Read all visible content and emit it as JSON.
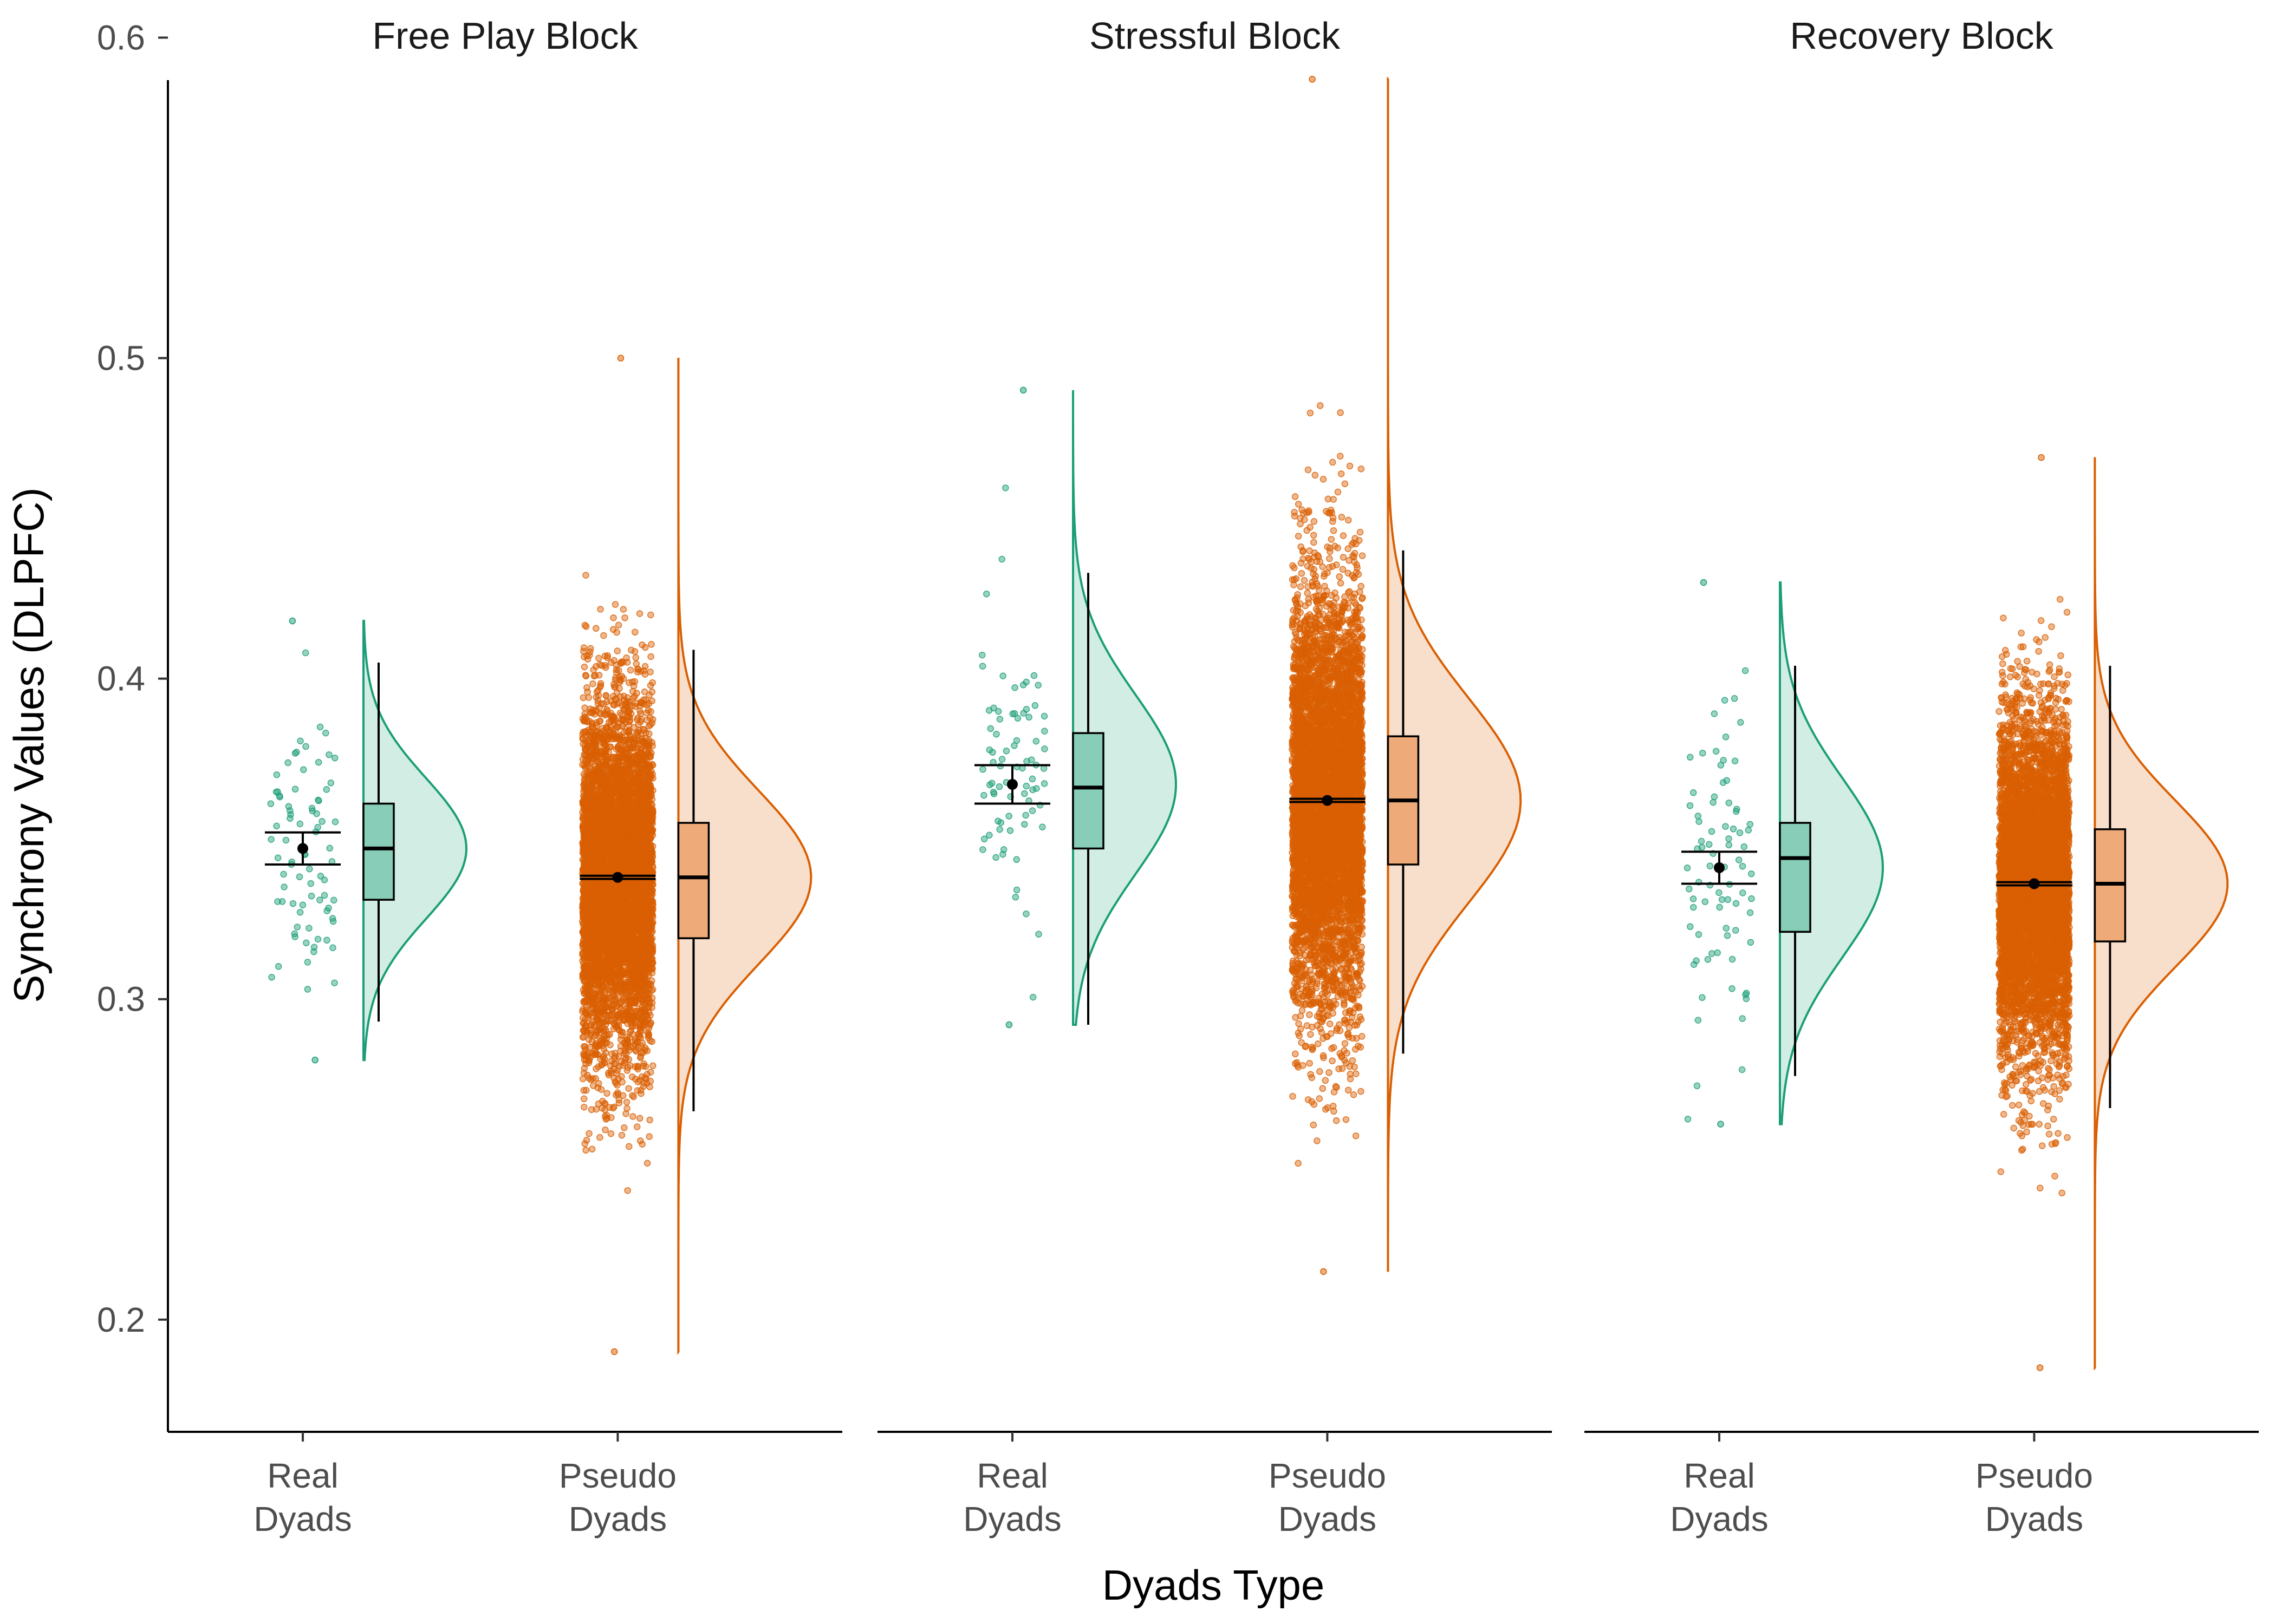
{
  "chart_data": {
    "type": "raincloud",
    "xlabel": "Dyads Type",
    "ylabel": "Synchrony Values (DLPFC)",
    "ylim": [
      0.165,
      0.607
    ],
    "yticks": [
      "0.2",
      "0.3",
      "0.4",
      "0.5",
      "0.6"
    ],
    "ytick_values": [
      0.2,
      0.3,
      0.4,
      0.5,
      0.6
    ],
    "categories": [
      {
        "line1": "Real",
        "line2": "Dyads"
      },
      {
        "line1": "Pseudo",
        "line2": "Dyads"
      }
    ],
    "colors": {
      "real_points": "#1b9e77",
      "real_box": "#87cdb8",
      "real_density_fill": "#d2ede4",
      "pseudo_points": "#d95f02",
      "pseudo_box": "#eeaa78",
      "pseudo_density_fill": "#f8dfcc"
    },
    "grid": false,
    "legend": "none",
    "panels": [
      {
        "title": "Free Play Block",
        "groups": [
          {
            "name": "Real Dyads",
            "n_points": 80,
            "mean": 0.347,
            "ci_low": 0.342,
            "ci_high": 0.352,
            "q1": 0.331,
            "median": 0.347,
            "q3": 0.361,
            "whisker_low": 0.293,
            "whisker_high": 0.405,
            "min": 0.281,
            "max": 0.418,
            "sd": 0.022
          },
          {
            "name": "Pseudo Dyads",
            "n_points": 6000,
            "mean": 0.338,
            "ci_low": 0.3375,
            "ci_high": 0.3385,
            "q1": 0.319,
            "median": 0.338,
            "q3": 0.355,
            "whisker_low": 0.265,
            "whisker_high": 0.409,
            "min": 0.19,
            "max": 0.5,
            "sd": 0.027
          }
        ]
      },
      {
        "title": "Stressful Block",
        "groups": [
          {
            "name": "Real Dyads",
            "n_points": 80,
            "mean": 0.367,
            "ci_low": 0.361,
            "ci_high": 0.373,
            "q1": 0.347,
            "median": 0.366,
            "q3": 0.383,
            "whisker_low": 0.292,
            "whisker_high": 0.433,
            "min": 0.292,
            "max": 0.49,
            "sd": 0.028
          },
          {
            "name": "Pseudo Dyads",
            "n_points": 6000,
            "mean": 0.362,
            "ci_low": 0.3615,
            "ci_high": 0.3625,
            "q1": 0.342,
            "median": 0.362,
            "q3": 0.382,
            "whisker_low": 0.283,
            "whisker_high": 0.44,
            "min": 0.215,
            "max": 0.587,
            "sd": 0.032
          }
        ]
      },
      {
        "title": "Recovery Block",
        "groups": [
          {
            "name": "Real Dyads",
            "n_points": 80,
            "mean": 0.341,
            "ci_low": 0.336,
            "ci_high": 0.346,
            "q1": 0.321,
            "median": 0.344,
            "q3": 0.355,
            "whisker_low": 0.276,
            "whisker_high": 0.404,
            "min": 0.261,
            "max": 0.43,
            "sd": 0.028
          },
          {
            "name": "Pseudo Dyads",
            "n_points": 6000,
            "mean": 0.336,
            "ci_low": 0.3355,
            "ci_high": 0.3365,
            "q1": 0.318,
            "median": 0.336,
            "q3": 0.353,
            "whisker_low": 0.266,
            "whisker_high": 0.404,
            "min": 0.185,
            "max": 0.469,
            "sd": 0.026
          }
        ]
      }
    ]
  }
}
